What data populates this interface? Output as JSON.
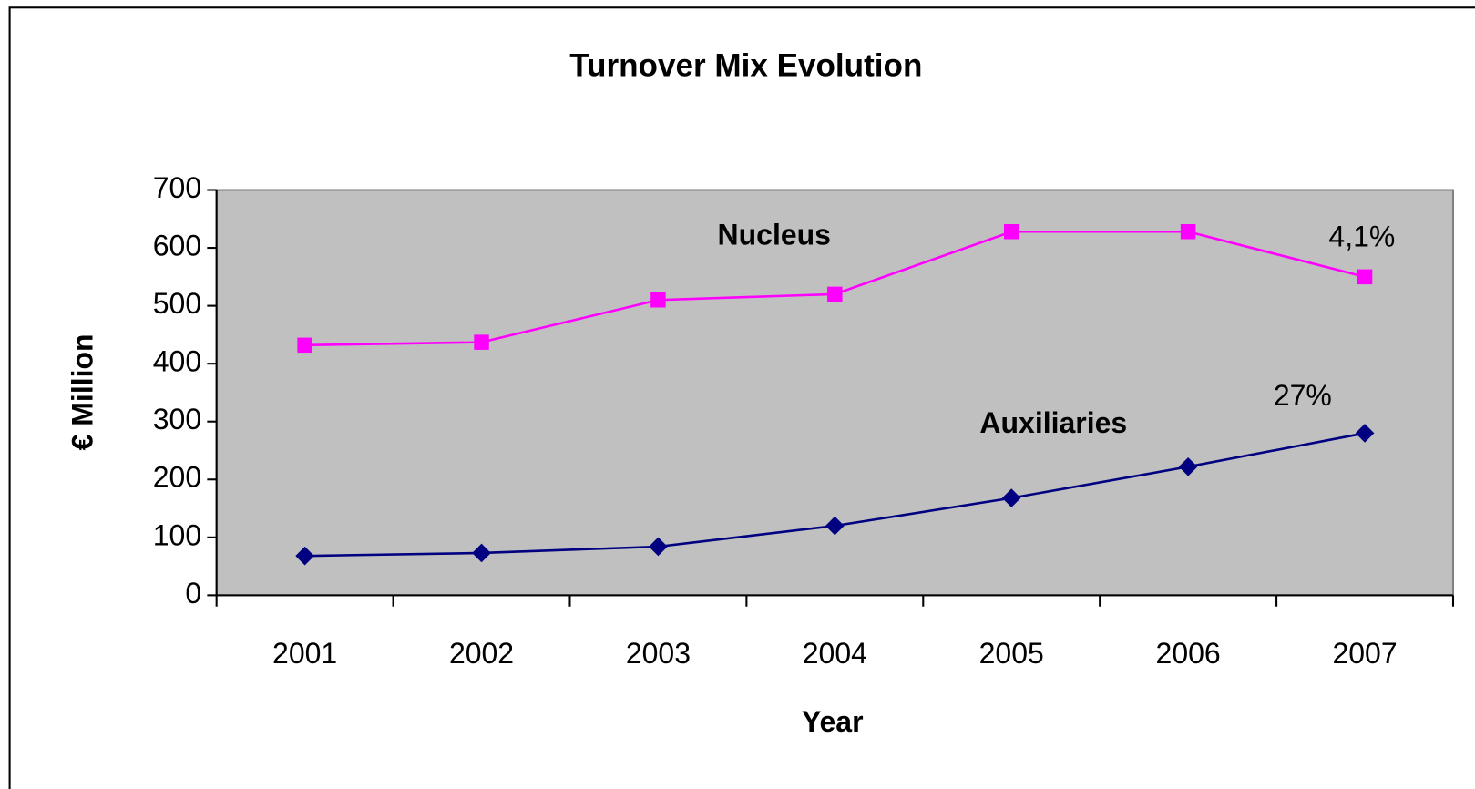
{
  "chart_data": {
    "type": "line",
    "title": "Turnover Mix Evolution",
    "x_label": "Year",
    "y_label": "€ Million",
    "categories": [
      "2001",
      "2002",
      "2003",
      "2004",
      "2005",
      "2006",
      "2007"
    ],
    "series": [
      {
        "name": "Nucleus",
        "color": "#ff00ff",
        "marker": "square",
        "values": [
          432,
          437,
          510,
          520,
          628,
          628,
          550
        ]
      },
      {
        "name": "Auxiliaries",
        "color": "#000080",
        "marker": "diamond",
        "values": [
          68,
          73,
          84,
          120,
          168,
          222,
          280
        ]
      }
    ],
    "annotations": [
      "4,1%",
      "27%"
    ],
    "ylim": [
      0,
      700
    ],
    "yticks": [
      0,
      100,
      200,
      300,
      400,
      500,
      600,
      700
    ],
    "plot_background": "#c0c0c0",
    "grid": false
  }
}
